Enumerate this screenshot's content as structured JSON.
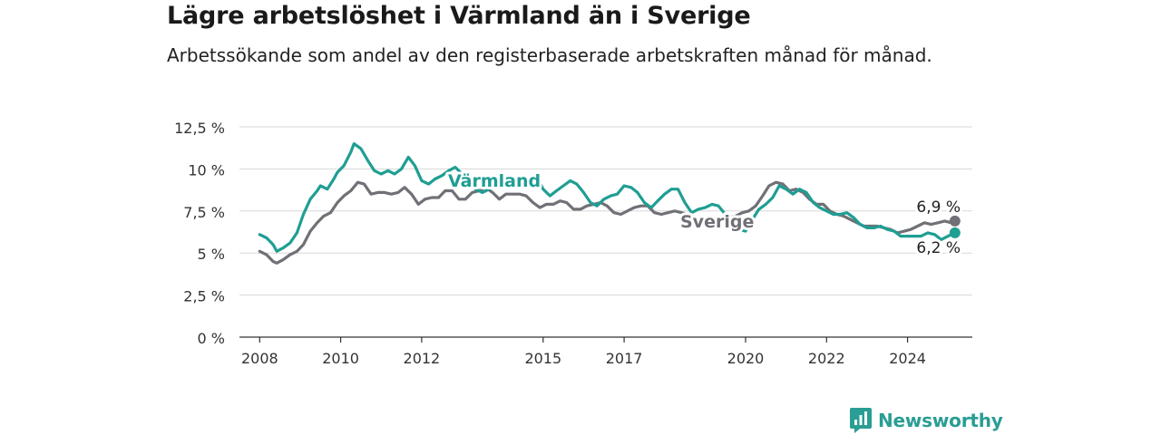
{
  "header": {
    "title": "Lägre arbetslöshet i Värmland än i Sverige",
    "subtitle": "Arbetssökande som andel av den registerbaserade arbetskraften månad för månad."
  },
  "brand": {
    "name": "Newsworthy",
    "icon": "newsworthy-logo-icon",
    "color": "#2a9d94"
  },
  "chart_data": {
    "type": "line",
    "xlim": [
      2007.5,
      2025.6
    ],
    "ylim": [
      0,
      12.5
    ],
    "yticks": [
      0,
      2.5,
      5,
      7.5,
      10,
      12.5
    ],
    "ytick_labels": [
      "0 %",
      "2,5 %",
      "5 %",
      "7,5 %",
      "10 %",
      "12,5 %"
    ],
    "xticks": [
      2008,
      2010,
      2012,
      2015,
      2017,
      2020,
      2022,
      2024
    ],
    "xtick_labels": [
      "2008",
      "2010",
      "2012",
      "2015",
      "2017",
      "2020",
      "2022",
      "2024"
    ],
    "grid": true,
    "legend": "direct labels",
    "series": [
      {
        "name": "Värmland",
        "color": "#1f9e93",
        "end_label": "6,2 %",
        "points": [
          [
            2008.0,
            6.1
          ],
          [
            2008.17,
            5.9
          ],
          [
            2008.33,
            5.5
          ],
          [
            2008.42,
            5.1
          ],
          [
            2008.58,
            5.3
          ],
          [
            2008.75,
            5.6
          ],
          [
            2008.92,
            6.2
          ],
          [
            2009.08,
            7.3
          ],
          [
            2009.25,
            8.2
          ],
          [
            2009.42,
            8.7
          ],
          [
            2009.5,
            9.0
          ],
          [
            2009.67,
            8.8
          ],
          [
            2009.83,
            9.4
          ],
          [
            2009.92,
            9.8
          ],
          [
            2010.08,
            10.2
          ],
          [
            2010.25,
            11.0
          ],
          [
            2010.33,
            11.5
          ],
          [
            2010.5,
            11.2
          ],
          [
            2010.67,
            10.5
          ],
          [
            2010.83,
            9.9
          ],
          [
            2011.0,
            9.7
          ],
          [
            2011.17,
            9.9
          ],
          [
            2011.33,
            9.7
          ],
          [
            2011.5,
            10.0
          ],
          [
            2011.67,
            10.7
          ],
          [
            2011.83,
            10.2
          ],
          [
            2012.0,
            9.3
          ],
          [
            2012.17,
            9.1
          ],
          [
            2012.33,
            9.4
          ],
          [
            2012.5,
            9.6
          ],
          [
            2012.67,
            9.9
          ],
          [
            2012.83,
            10.1
          ],
          [
            2013.0,
            9.7
          ],
          [
            2013.17,
            9.2
          ],
          [
            2013.33,
            8.8
          ],
          [
            2013.5,
            8.6
          ],
          [
            2013.67,
            8.8
          ],
          [
            2013.83,
            9.5
          ],
          [
            2014.0,
            9.6
          ],
          [
            2014.17,
            9.4
          ],
          [
            2014.33,
            9.2
          ],
          [
            2014.5,
            9.1
          ],
          [
            2014.67,
            9.4
          ],
          [
            2014.83,
            9.6
          ],
          [
            2015.0,
            8.8
          ],
          [
            2015.17,
            8.4
          ],
          [
            2015.33,
            8.7
          ],
          [
            2015.5,
            9.0
          ],
          [
            2015.67,
            9.3
          ],
          [
            2015.83,
            9.1
          ],
          [
            2016.0,
            8.6
          ],
          [
            2016.17,
            8.0
          ],
          [
            2016.33,
            7.8
          ],
          [
            2016.5,
            8.2
          ],
          [
            2016.67,
            8.4
          ],
          [
            2016.83,
            8.5
          ],
          [
            2017.0,
            9.0
          ],
          [
            2017.17,
            8.9
          ],
          [
            2017.33,
            8.6
          ],
          [
            2017.5,
            8.0
          ],
          [
            2017.67,
            7.7
          ],
          [
            2017.83,
            8.1
          ],
          [
            2018.0,
            8.5
          ],
          [
            2018.17,
            8.8
          ],
          [
            2018.33,
            8.8
          ],
          [
            2018.5,
            8.0
          ],
          [
            2018.67,
            7.4
          ],
          [
            2018.83,
            7.6
          ],
          [
            2019.0,
            7.7
          ],
          [
            2019.17,
            7.9
          ],
          [
            2019.33,
            7.8
          ],
          [
            2019.5,
            7.3
          ],
          [
            2019.67,
            6.6
          ],
          [
            2019.83,
            6.4
          ],
          [
            2020.0,
            6.3
          ],
          [
            2020.17,
            7.0
          ],
          [
            2020.33,
            7.6
          ],
          [
            2020.5,
            7.9
          ],
          [
            2020.67,
            8.3
          ],
          [
            2020.83,
            9.0
          ],
          [
            2021.0,
            8.8
          ],
          [
            2021.17,
            8.5
          ],
          [
            2021.33,
            8.8
          ],
          [
            2021.5,
            8.6
          ],
          [
            2021.67,
            8.0
          ],
          [
            2021.83,
            7.7
          ],
          [
            2022.0,
            7.5
          ],
          [
            2022.17,
            7.3
          ],
          [
            2022.33,
            7.3
          ],
          [
            2022.5,
            7.4
          ],
          [
            2022.67,
            7.1
          ],
          [
            2022.83,
            6.7
          ],
          [
            2023.0,
            6.5
          ],
          [
            2023.17,
            6.5
          ],
          [
            2023.33,
            6.6
          ],
          [
            2023.5,
            6.4
          ],
          [
            2023.67,
            6.3
          ],
          [
            2023.83,
            6.0
          ],
          [
            2024.0,
            6.0
          ],
          [
            2024.17,
            6.0
          ],
          [
            2024.33,
            6.0
          ],
          [
            2024.5,
            6.2
          ],
          [
            2024.67,
            6.1
          ],
          [
            2024.83,
            5.8
          ],
          [
            2025.0,
            6.0
          ],
          [
            2025.17,
            6.2
          ]
        ]
      },
      {
        "name": "Sverige",
        "color": "#707077",
        "end_label": "6,9 %",
        "points": [
          [
            2008.0,
            5.1
          ],
          [
            2008.17,
            4.9
          ],
          [
            2008.33,
            4.5
          ],
          [
            2008.42,
            4.4
          ],
          [
            2008.58,
            4.6
          ],
          [
            2008.75,
            4.9
          ],
          [
            2008.92,
            5.1
          ],
          [
            2009.08,
            5.5
          ],
          [
            2009.25,
            6.3
          ],
          [
            2009.42,
            6.8
          ],
          [
            2009.58,
            7.2
          ],
          [
            2009.75,
            7.4
          ],
          [
            2009.92,
            8.0
          ],
          [
            2010.08,
            8.4
          ],
          [
            2010.25,
            8.7
          ],
          [
            2010.42,
            9.2
          ],
          [
            2010.58,
            9.1
          ],
          [
            2010.75,
            8.5
          ],
          [
            2010.92,
            8.6
          ],
          [
            2011.08,
            8.6
          ],
          [
            2011.25,
            8.5
          ],
          [
            2011.42,
            8.6
          ],
          [
            2011.58,
            8.9
          ],
          [
            2011.75,
            8.5
          ],
          [
            2011.92,
            7.9
          ],
          [
            2012.08,
            8.2
          ],
          [
            2012.25,
            8.3
          ],
          [
            2012.42,
            8.3
          ],
          [
            2012.58,
            8.7
          ],
          [
            2012.75,
            8.7
          ],
          [
            2012.92,
            8.2
          ],
          [
            2013.08,
            8.2
          ],
          [
            2013.25,
            8.6
          ],
          [
            2013.42,
            8.7
          ],
          [
            2013.58,
            8.9
          ],
          [
            2013.75,
            8.6
          ],
          [
            2013.92,
            8.2
          ],
          [
            2014.08,
            8.5
          ],
          [
            2014.25,
            8.5
          ],
          [
            2014.42,
            8.5
          ],
          [
            2014.58,
            8.4
          ],
          [
            2014.75,
            8.0
          ],
          [
            2014.92,
            7.7
          ],
          [
            2015.08,
            7.9
          ],
          [
            2015.25,
            7.9
          ],
          [
            2015.42,
            8.1
          ],
          [
            2015.58,
            8.0
          ],
          [
            2015.75,
            7.6
          ],
          [
            2015.92,
            7.6
          ],
          [
            2016.08,
            7.8
          ],
          [
            2016.25,
            7.9
          ],
          [
            2016.42,
            8.0
          ],
          [
            2016.58,
            7.8
          ],
          [
            2016.75,
            7.4
          ],
          [
            2016.92,
            7.3
          ],
          [
            2017.08,
            7.5
          ],
          [
            2017.25,
            7.7
          ],
          [
            2017.42,
            7.8
          ],
          [
            2017.58,
            7.8
          ],
          [
            2017.75,
            7.4
          ],
          [
            2017.92,
            7.3
          ],
          [
            2018.08,
            7.4
          ],
          [
            2018.25,
            7.5
          ],
          [
            2018.42,
            7.4
          ],
          [
            2018.58,
            7.3
          ],
          [
            2018.75,
            7.0
          ],
          [
            2018.92,
            6.9
          ],
          [
            2019.08,
            6.9
          ],
          [
            2019.25,
            7.0
          ],
          [
            2019.42,
            7.1
          ],
          [
            2019.58,
            7.1
          ],
          [
            2019.75,
            7.2
          ],
          [
            2019.92,
            7.4
          ],
          [
            2020.08,
            7.5
          ],
          [
            2020.25,
            7.8
          ],
          [
            2020.42,
            8.4
          ],
          [
            2020.58,
            9.0
          ],
          [
            2020.75,
            9.2
          ],
          [
            2020.92,
            9.1
          ],
          [
            2021.08,
            8.7
          ],
          [
            2021.25,
            8.8
          ],
          [
            2021.42,
            8.6
          ],
          [
            2021.58,
            8.2
          ],
          [
            2021.75,
            7.9
          ],
          [
            2021.92,
            7.9
          ],
          [
            2022.08,
            7.5
          ],
          [
            2022.25,
            7.3
          ],
          [
            2022.42,
            7.2
          ],
          [
            2022.58,
            7.0
          ],
          [
            2022.75,
            6.8
          ],
          [
            2022.92,
            6.6
          ],
          [
            2023.08,
            6.6
          ],
          [
            2023.25,
            6.6
          ],
          [
            2023.42,
            6.5
          ],
          [
            2023.58,
            6.4
          ],
          [
            2023.75,
            6.2
          ],
          [
            2023.92,
            6.3
          ],
          [
            2024.08,
            6.4
          ],
          [
            2024.25,
            6.6
          ],
          [
            2024.42,
            6.8
          ],
          [
            2024.58,
            6.7
          ],
          [
            2024.75,
            6.8
          ],
          [
            2024.92,
            6.9
          ],
          [
            2025.08,
            6.8
          ],
          [
            2025.17,
            6.9
          ]
        ]
      }
    ]
  }
}
